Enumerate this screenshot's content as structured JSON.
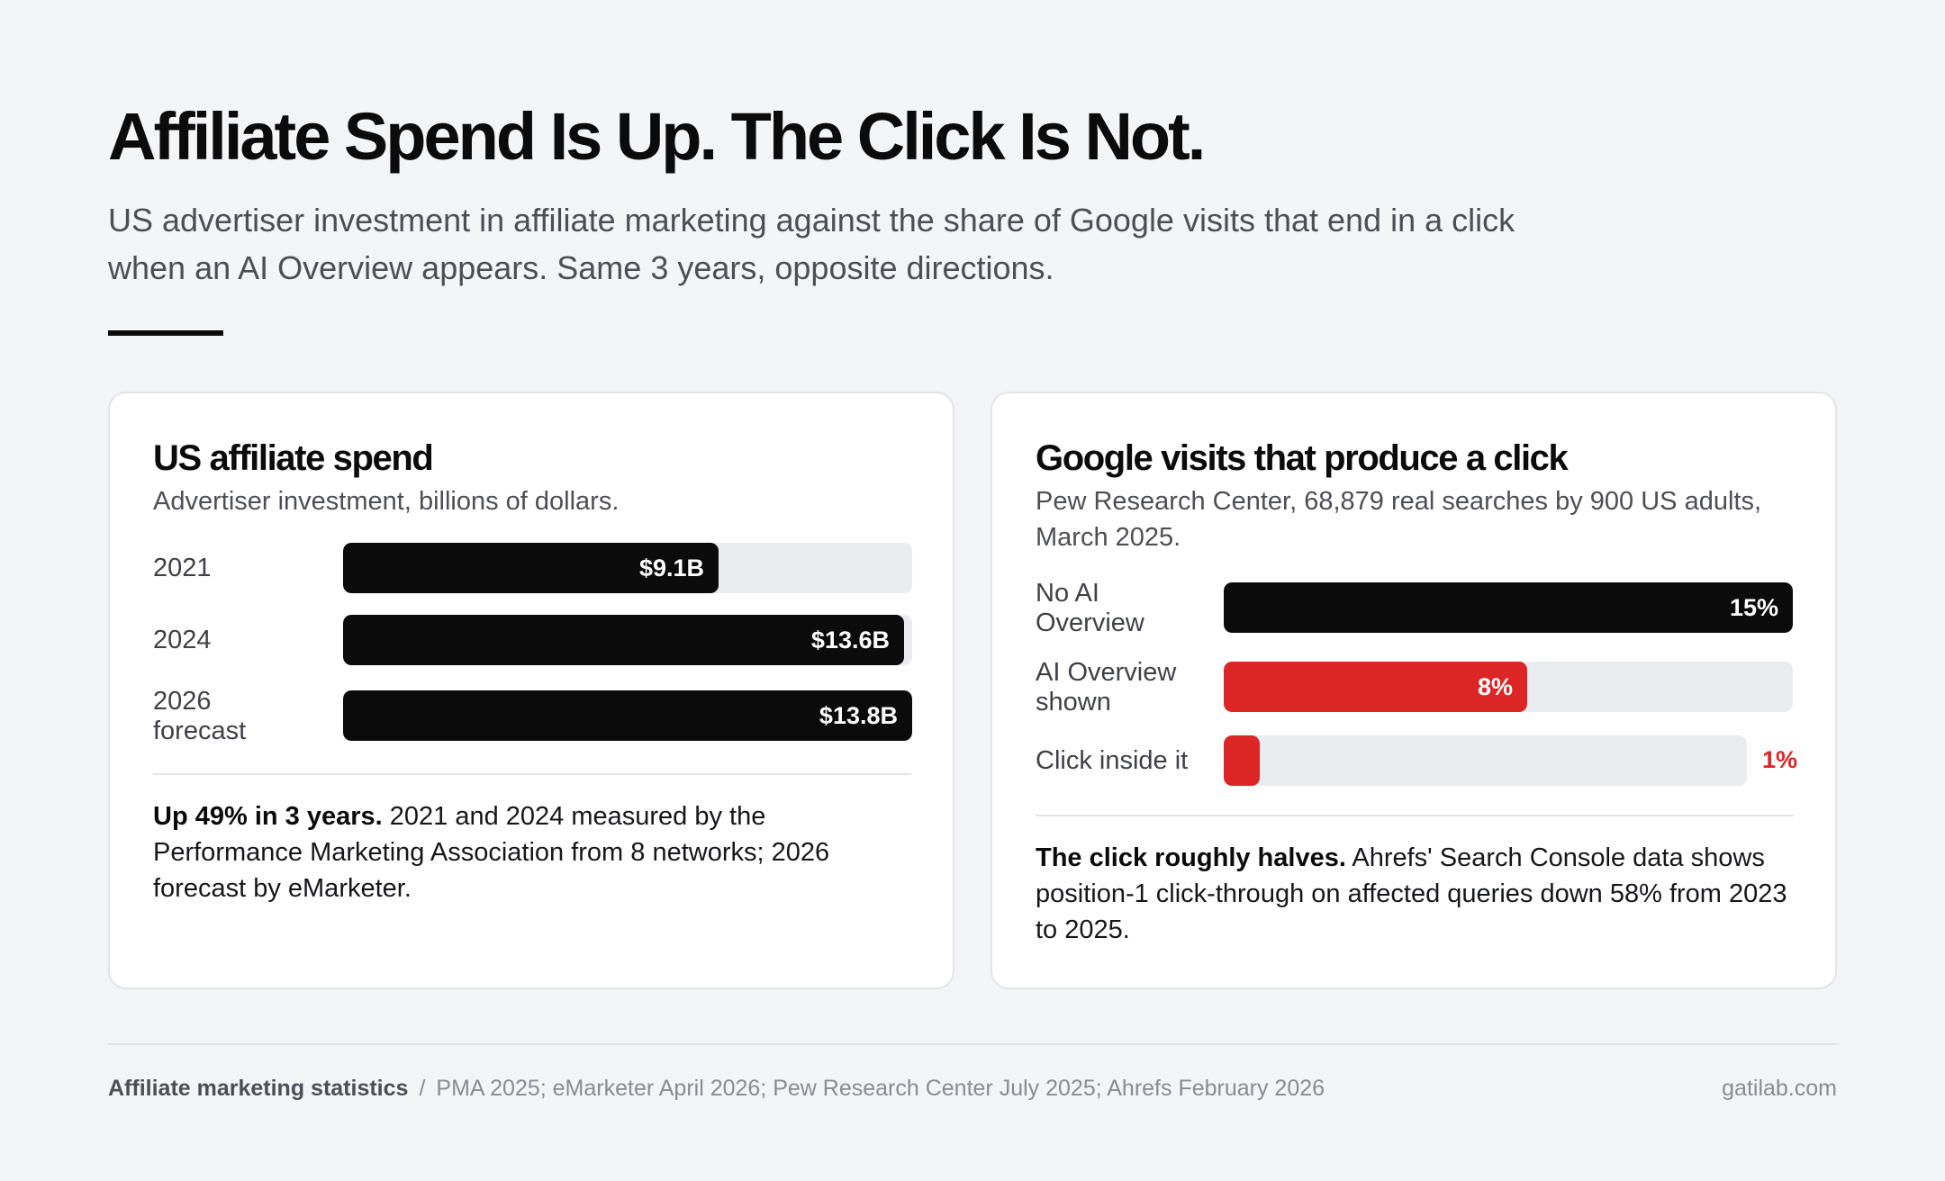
{
  "title": "Affiliate Spend Is Up. The Click Is Not.",
  "subtitle": "US advertiser investment in affiliate marketing against the share of Google visits that end in a click when an AI Overview appears. Same 3 years, opposite directions.",
  "colors": {
    "accent": "#dc2626",
    "bar": "#0b0b0c",
    "track": "#ebecef",
    "background": "#f4f5f7"
  },
  "chart_data": [
    {
      "type": "bar",
      "orientation": "horizontal",
      "title": "US affiliate spend",
      "subtitle": "Advertiser investment, billions of dollars.",
      "categories": [
        "2021",
        "2024",
        "2026\nforecast"
      ],
      "values": [
        9.1,
        13.6,
        13.8
      ],
      "value_labels": [
        "$9.1B",
        "$13.6B",
        "$13.8B"
      ],
      "xlim": [
        0,
        13.8
      ],
      "note_bold": "Up 49% in 3 years.",
      "note_text": " 2021 and 2024 measured by the Performance Marketing Association from 8 networks; 2026 forecast by eMarketer."
    },
    {
      "type": "bar",
      "orientation": "horizontal",
      "title": "Google visits that produce a click",
      "subtitle": "Pew Research Center, 68,879 real searches by 900 US adults, March 2025.",
      "categories": [
        "No AI\nOverview",
        "AI Overview\nshown",
        "Click inside it"
      ],
      "values": [
        15,
        8,
        1
      ],
      "value_labels": [
        "15%",
        "8%",
        "1%"
      ],
      "colors": [
        "#0b0b0c",
        "#dc2626",
        "#dc2626"
      ],
      "xlim": [
        0,
        15
      ],
      "note_bold": "The click roughly halves.",
      "note_text": " Ahrefs' Search Console data shows position-1 click-through on affected queries down 58% from 2023 to 2025."
    }
  ],
  "footer": {
    "label": "Affiliate marketing statistics",
    "separator": "/",
    "sources": "PMA 2025; eMarketer April 2026; Pew Research Center July 2025; Ahrefs February 2026",
    "site": "gatilab.com"
  }
}
